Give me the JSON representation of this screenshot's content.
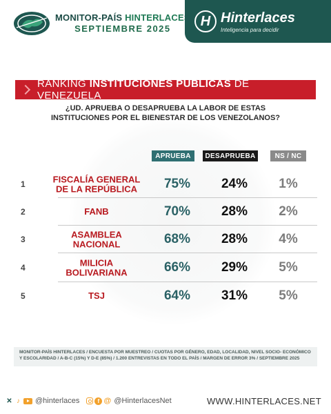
{
  "header": {
    "brand_title_a": "MONITOR-PAÍS",
    "brand_title_b": "HINTERLACES",
    "brand_subtitle": "SEPTIEMBRE  2025",
    "logo_name": "Hinterlaces",
    "logo_tagline": "Inteligencia para decidir",
    "logo_letter": "H"
  },
  "banner": {
    "prefix": "RANKING ",
    "bold": "INSTITUCIONES PÚBLICAS",
    "suffix": " DE VENEZUELA"
  },
  "question": {
    "line1": "¿UD. APRUEBA O DESAPRUEBA LA LABOR DE ESTAS",
    "line2": "INSTITUCIONES POR EL BIENESTAR DE LOS VENEZOLANOS?"
  },
  "columns": {
    "approve": "APRUEBA",
    "disapprove": "DESAPRUEBA",
    "nsnc": "NS / NC"
  },
  "rows": [
    {
      "rank": "1",
      "name_line1": "FISCALÍA GENERAL",
      "name_line2": "DE LA REPÚBLICA",
      "approve": "75%",
      "disapprove": "24%",
      "nsnc": "1%"
    },
    {
      "rank": "2",
      "name_line1": "FANB",
      "name_line2": "",
      "approve": "70%",
      "disapprove": "28%",
      "nsnc": "2%"
    },
    {
      "rank": "3",
      "name_line1": "ASAMBLEA",
      "name_line2": "NACIONAL",
      "approve": "68%",
      "disapprove": "28%",
      "nsnc": "4%"
    },
    {
      "rank": "4",
      "name_line1": "MILICIA",
      "name_line2": "BOLIVARIANA",
      "approve": "66%",
      "disapprove": "29%",
      "nsnc": "5%"
    },
    {
      "rank": "5",
      "name_line1": "TSJ",
      "name_line2": "",
      "approve": "64%",
      "disapprove": "31%",
      "nsnc": "5%"
    }
  ],
  "footnote": {
    "line1": "MONITOR-PAÍS HINTERLACES / ENCUESTA POR MUESTREO / CUOTAS POR GÉNERO, EDAD, LOCALIDAD,  NIVEL SOCIO- ECONÓMICO",
    "line2": "Y ESCOLARIDAD / A-B-C (15%) Y D-E (85%) / 1.200 ENTREVISTAS EN TODO EL PAÍS  / MARGEN DE ERROR 3% / SEPTIEMBRE 2025"
  },
  "footer": {
    "handle1": "@hinterlaces",
    "handle2": "@HinterlacesNet",
    "website": "WWW.HINTERLACES.NET"
  },
  "colors": {
    "brand_green": "#1e5750",
    "banner_red": "#c81e2a",
    "institution_red": "#b8191f",
    "approve_teal": "#2f6f72",
    "disapprove_black": "#1a1a1a",
    "nsnc_gray": "#8a8a8a",
    "accent_orange": "#f2a12c"
  },
  "icons": [
    "globe-logo",
    "hinterlaces-logo",
    "x-icon",
    "tiktok-icon",
    "youtube-icon",
    "instagram-icon",
    "facebook-icon",
    "threads-icon"
  ],
  "chart_data": {
    "type": "table",
    "title": "RANKING INSTITUCIONES PÚBLICAS DE VENEZUELA",
    "subtitle": "¿UD. APRUEBA O DESAPRUEBA LA LABOR DE ESTAS INSTITUCIONES POR EL BIENESTAR DE LOS VENEZOLANOS?",
    "categories": [
      "FISCALÍA GENERAL DE LA REPÚBLICA",
      "FANB",
      "ASAMBLEA NACIONAL",
      "MILICIA BOLIVARIANA",
      "TSJ"
    ],
    "series": [
      {
        "name": "APRUEBA",
        "values": [
          75,
          70,
          68,
          66,
          64
        ]
      },
      {
        "name": "DESAPRUEBA",
        "values": [
          24,
          28,
          28,
          29,
          31
        ]
      },
      {
        "name": "NS / NC",
        "values": [
          1,
          2,
          4,
          5,
          5
        ]
      }
    ],
    "unit": "%"
  }
}
